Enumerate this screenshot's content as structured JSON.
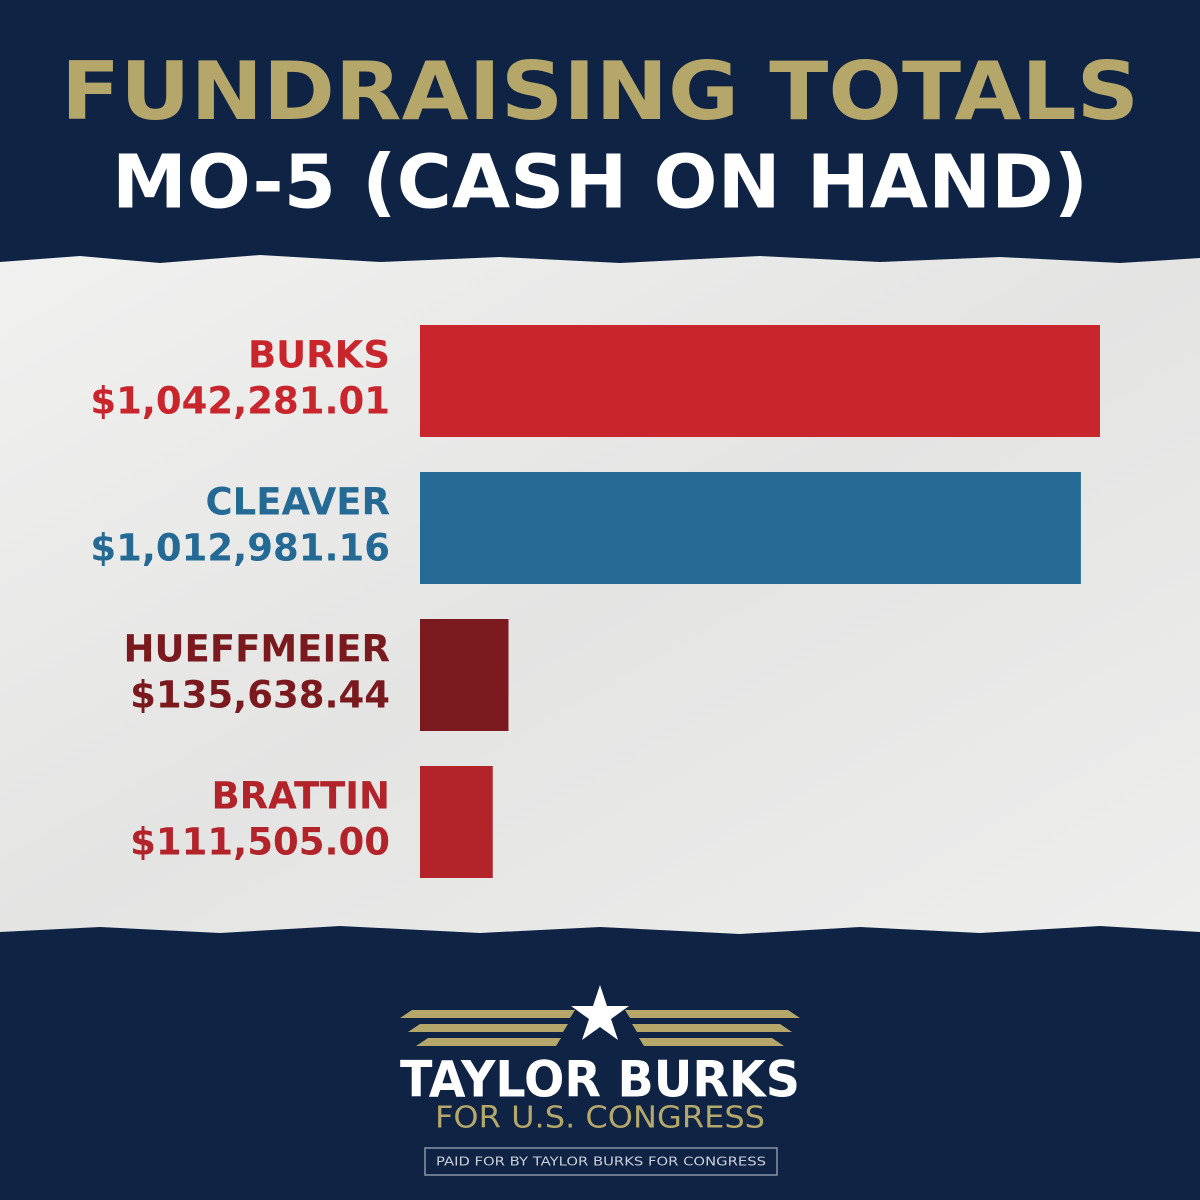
{
  "chart_data": {
    "type": "hbar",
    "title": "FUNDRAISING TOTALS",
    "subtitle": "MO-5 (CASH ON HAND)",
    "categories": [
      "BURKS",
      "CLEAVER",
      "HUEFFMEIER",
      "BRATTIN"
    ],
    "values": [
      1042281.01,
      1012981.16,
      135638.44,
      111505.0
    ],
    "value_labels": [
      "$1,042,281.01",
      "$1,012,981.16",
      "$135,638.44",
      "$111,505.00"
    ],
    "colors": [
      "#c8262c",
      "#246a94",
      "#7a1a1e",
      "#b3232a"
    ]
  },
  "footer": {
    "name": "TAYLOR BURKS",
    "tagline": "FOR U.S. CONGRESS",
    "disclaimer": "PAID FOR BY TAYLOR BURKS FOR CONGRESS"
  }
}
